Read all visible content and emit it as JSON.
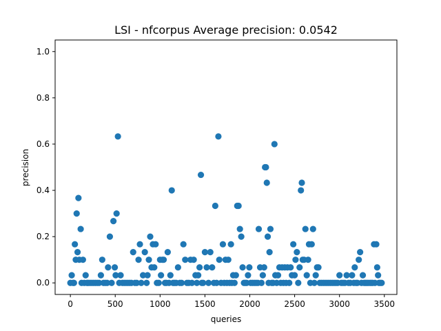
{
  "chart_data": {
    "type": "scatter",
    "title": "LSI - nfcorpus  Average precision: 0.0542",
    "xlabel": "queries",
    "ylabel": "precision",
    "xlim": [
      -170,
      3640
    ],
    "ylim": [
      -0.05,
      1.05
    ],
    "xticks": [
      0,
      500,
      1000,
      1500,
      2000,
      2500,
      3000,
      3500
    ],
    "yticks": [
      0.0,
      0.2,
      0.4,
      0.6,
      0.8,
      1.0
    ],
    "xtick_labels": [
      "0",
      "500",
      "1000",
      "1500",
      "2000",
      "2500",
      "3000",
      "3500"
    ],
    "ytick_labels": [
      "0.0",
      "0.2",
      "0.4",
      "0.6",
      "0.8",
      "1.0"
    ],
    "grid": false,
    "legend": "none",
    "marker_color": "#1f77b4",
    "points": [
      [
        0,
        0
      ],
      [
        15,
        0.033
      ],
      [
        30,
        0
      ],
      [
        40,
        0
      ],
      [
        50,
        0.167
      ],
      [
        60,
        0.1
      ],
      [
        70,
        0.3
      ],
      [
        80,
        0.133
      ],
      [
        90,
        0.367
      ],
      [
        100,
        0.1
      ],
      [
        115,
        0.233
      ],
      [
        125,
        0
      ],
      [
        140,
        0.1
      ],
      [
        155,
        0
      ],
      [
        170,
        0.033
      ],
      [
        185,
        0
      ],
      [
        200,
        0
      ],
      [
        220,
        0
      ],
      [
        240,
        0
      ],
      [
        260,
        0
      ],
      [
        280,
        0
      ],
      [
        300,
        0
      ],
      [
        320,
        0
      ],
      [
        340,
        0.033
      ],
      [
        355,
        0.1
      ],
      [
        370,
        0
      ],
      [
        390,
        0
      ],
      [
        410,
        0
      ],
      [
        420,
        0.067
      ],
      [
        440,
        0.2
      ],
      [
        460,
        0
      ],
      [
        480,
        0.267
      ],
      [
        495,
        0.067
      ],
      [
        505,
        0.033
      ],
      [
        515,
        0.3
      ],
      [
        530,
        0.633
      ],
      [
        545,
        0
      ],
      [
        560,
        0.033
      ],
      [
        580,
        0
      ],
      [
        600,
        0
      ],
      [
        620,
        0
      ],
      [
        640,
        0
      ],
      [
        660,
        0
      ],
      [
        680,
        0
      ],
      [
        700,
        0.133
      ],
      [
        720,
        0
      ],
      [
        740,
        0
      ],
      [
        760,
        0.1
      ],
      [
        775,
        0.167
      ],
      [
        790,
        0
      ],
      [
        810,
        0.033
      ],
      [
        830,
        0.133
      ],
      [
        850,
        0
      ],
      [
        860,
        0.033
      ],
      [
        875,
        0.1
      ],
      [
        890,
        0.2
      ],
      [
        905,
        0.067
      ],
      [
        920,
        0.167
      ],
      [
        935,
        0.067
      ],
      [
        950,
        0.167
      ],
      [
        965,
        0
      ],
      [
        985,
        0
      ],
      [
        1000,
        0.1
      ],
      [
        1010,
        0.033
      ],
      [
        1025,
        0.1
      ],
      [
        1040,
        0.1
      ],
      [
        1055,
        0
      ],
      [
        1070,
        0
      ],
      [
        1085,
        0.133
      ],
      [
        1100,
        0
      ],
      [
        1115,
        0.033
      ],
      [
        1130,
        0.4
      ],
      [
        1145,
        0
      ],
      [
        1160,
        0
      ],
      [
        1180,
        0
      ],
      [
        1200,
        0.067
      ],
      [
        1220,
        0
      ],
      [
        1240,
        0
      ],
      [
        1260,
        0.167
      ],
      [
        1280,
        0.1
      ],
      [
        1300,
        0
      ],
      [
        1320,
        0
      ],
      [
        1340,
        0.1
      ],
      [
        1355,
        0
      ],
      [
        1375,
        0.1
      ],
      [
        1395,
        0.033
      ],
      [
        1410,
        0
      ],
      [
        1425,
        0.033
      ],
      [
        1440,
        0.067
      ],
      [
        1455,
        0.467
      ],
      [
        1465,
        0
      ],
      [
        1480,
        0
      ],
      [
        1500,
        0.133
      ],
      [
        1520,
        0.067
      ],
      [
        1540,
        0
      ],
      [
        1560,
        0.133
      ],
      [
        1580,
        0.067
      ],
      [
        1600,
        0
      ],
      [
        1615,
        0.333
      ],
      [
        1630,
        0
      ],
      [
        1650,
        0.633
      ],
      [
        1660,
        0.1
      ],
      [
        1680,
        0
      ],
      [
        1700,
        0.167
      ],
      [
        1715,
        0
      ],
      [
        1730,
        0.1
      ],
      [
        1745,
        0
      ],
      [
        1760,
        0.1
      ],
      [
        1775,
        0
      ],
      [
        1790,
        0.167
      ],
      [
        1800,
        0
      ],
      [
        1815,
        0.033
      ],
      [
        1830,
        0
      ],
      [
        1845,
        0.033
      ],
      [
        1860,
        0.333
      ],
      [
        1875,
        0.333
      ],
      [
        1890,
        0.233
      ],
      [
        1905,
        0.2
      ],
      [
        1920,
        0.067
      ],
      [
        1935,
        0
      ],
      [
        1950,
        0
      ],
      [
        1965,
        0
      ],
      [
        1980,
        0.033
      ],
      [
        1995,
        0.067
      ],
      [
        2010,
        0
      ],
      [
        2030,
        0
      ],
      [
        2050,
        0
      ],
      [
        2070,
        0
      ],
      [
        2090,
        0
      ],
      [
        2100,
        0.233
      ],
      [
        2115,
        0.067
      ],
      [
        2130,
        0
      ],
      [
        2145,
        0.033
      ],
      [
        2160,
        0.067
      ],
      [
        2170,
        0.5
      ],
      [
        2180,
        0.5
      ],
      [
        2190,
        0.433
      ],
      [
        2200,
        0.2
      ],
      [
        2210,
        0
      ],
      [
        2220,
        0.133
      ],
      [
        2230,
        0.233
      ],
      [
        2245,
        0
      ],
      [
        2260,
        0
      ],
      [
        2275,
        0.6
      ],
      [
        2285,
        0.033
      ],
      [
        2300,
        0
      ],
      [
        2315,
        0.033
      ],
      [
        2330,
        0.067
      ],
      [
        2345,
        0
      ],
      [
        2360,
        0.067
      ],
      [
        2375,
        0
      ],
      [
        2390,
        0.067
      ],
      [
        2405,
        0
      ],
      [
        2420,
        0.067
      ],
      [
        2440,
        0
      ],
      [
        2455,
        0.067
      ],
      [
        2470,
        0.033
      ],
      [
        2485,
        0.167
      ],
      [
        2500,
        0.033
      ],
      [
        2510,
        0.1
      ],
      [
        2525,
        0.133
      ],
      [
        2540,
        0
      ],
      [
        2555,
        0.067
      ],
      [
        2570,
        0.4
      ],
      [
        2580,
        0.433
      ],
      [
        2590,
        0.1
      ],
      [
        2605,
        0.1
      ],
      [
        2620,
        0.233
      ],
      [
        2635,
        0.033
      ],
      [
        2650,
        0.1
      ],
      [
        2660,
        0.167
      ],
      [
        2675,
        0
      ],
      [
        2690,
        0.167
      ],
      [
        2705,
        0.233
      ],
      [
        2720,
        0
      ],
      [
        2735,
        0.033
      ],
      [
        2750,
        0.067
      ],
      [
        2765,
        0.067
      ],
      [
        2780,
        0
      ],
      [
        2800,
        0
      ],
      [
        2820,
        0
      ],
      [
        2840,
        0
      ],
      [
        2860,
        0
      ],
      [
        2880,
        0
      ],
      [
        2900,
        0
      ],
      [
        2920,
        0
      ],
      [
        2940,
        0
      ],
      [
        2960,
        0
      ],
      [
        2980,
        0
      ],
      [
        3000,
        0.033
      ],
      [
        3020,
        0
      ],
      [
        3040,
        0
      ],
      [
        3060,
        0
      ],
      [
        3080,
        0.033
      ],
      [
        3100,
        0
      ],
      [
        3120,
        0
      ],
      [
        3140,
        0.033
      ],
      [
        3160,
        0
      ],
      [
        3170,
        0.067
      ],
      [
        3185,
        0
      ],
      [
        3200,
        0
      ],
      [
        3215,
        0.1
      ],
      [
        3230,
        0.133
      ],
      [
        3245,
        0
      ],
      [
        3260,
        0.033
      ],
      [
        3275,
        0
      ],
      [
        3290,
        0
      ],
      [
        3305,
        0
      ],
      [
        3320,
        0
      ],
      [
        3340,
        0
      ],
      [
        3355,
        0
      ],
      [
        3370,
        0
      ],
      [
        3385,
        0.167
      ],
      [
        3395,
        0
      ],
      [
        3410,
        0.167
      ],
      [
        3420,
        0.067
      ],
      [
        3430,
        0.033
      ],
      [
        3440,
        0
      ],
      [
        3455,
        0
      ],
      [
        3470,
        0
      ]
    ]
  }
}
